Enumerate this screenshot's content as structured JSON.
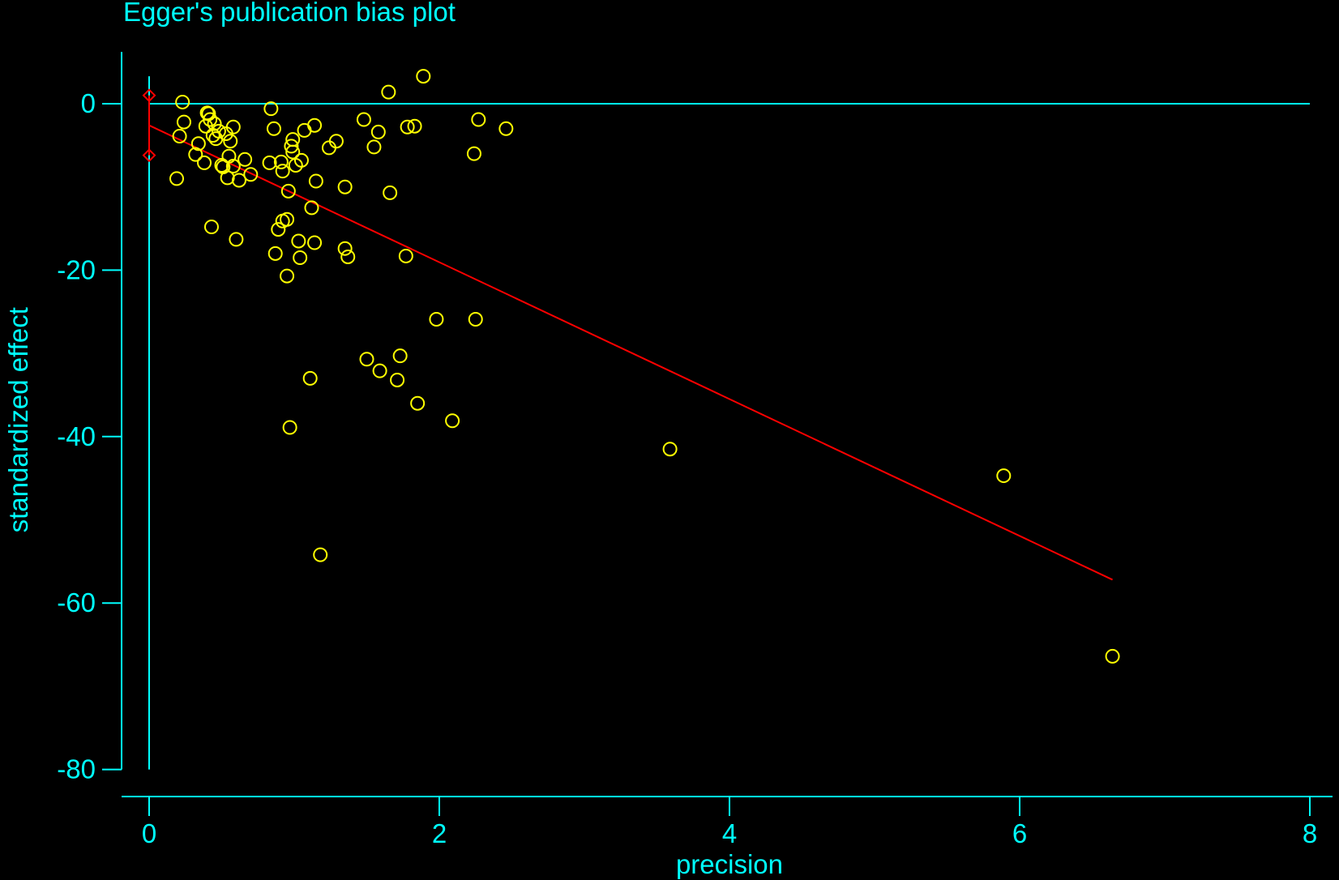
{
  "colors": {
    "background": "#000000",
    "axis": "#00FFFF",
    "points": "#FFFF00",
    "line": "#FF0000"
  },
  "chart_data": {
    "type": "scatter",
    "title": "Egger's publication bias plot",
    "xlabel": "precision",
    "ylabel": "standardized effect",
    "xlim": [
      0,
      8
    ],
    "ylim": [
      -80,
      0
    ],
    "xticks": [
      0,
      2,
      4,
      6,
      8
    ],
    "yticks": [
      0,
      -20,
      -40,
      -60,
      -80
    ],
    "grid": false,
    "points": [
      [
        0.19,
        -9.0
      ],
      [
        0.21,
        -3.9
      ],
      [
        0.23,
        0.2
      ],
      [
        0.24,
        -2.2
      ],
      [
        0.32,
        -6.1
      ],
      [
        0.34,
        -4.8
      ],
      [
        0.38,
        -7.1
      ],
      [
        0.39,
        -2.7
      ],
      [
        0.4,
        -1.1
      ],
      [
        0.41,
        -1.2
      ],
      [
        0.42,
        -1.9
      ],
      [
        0.43,
        -14.8
      ],
      [
        0.44,
        -3.8
      ],
      [
        0.45,
        -2.4
      ],
      [
        0.46,
        -4.2
      ],
      [
        0.48,
        -3.3
      ],
      [
        0.5,
        -7.4
      ],
      [
        0.51,
        -7.6
      ],
      [
        0.53,
        -3.6
      ],
      [
        0.54,
        -8.9
      ],
      [
        0.55,
        -6.3
      ],
      [
        0.56,
        -4.5
      ],
      [
        0.58,
        -7.5
      ],
      [
        0.58,
        -2.8
      ],
      [
        0.6,
        -16.3
      ],
      [
        0.62,
        -9.2
      ],
      [
        0.66,
        -6.7
      ],
      [
        0.7,
        -8.5
      ],
      [
        0.83,
        -7.1
      ],
      [
        0.84,
        -0.6
      ],
      [
        0.86,
        -3.0
      ],
      [
        0.87,
        -18.0
      ],
      [
        0.89,
        -15.1
      ],
      [
        0.91,
        -7.0
      ],
      [
        0.92,
        -14.1
      ],
      [
        0.92,
        -8.1
      ],
      [
        0.95,
        -20.7
      ],
      [
        0.95,
        -13.9
      ],
      [
        0.96,
        -10.5
      ],
      [
        0.97,
        -38.9
      ],
      [
        0.98,
        -5.1
      ],
      [
        0.99,
        -4.3
      ],
      [
        0.99,
        -5.8
      ],
      [
        1.01,
        -7.4
      ],
      [
        1.03,
        -16.5
      ],
      [
        1.04,
        -18.5
      ],
      [
        1.05,
        -6.8
      ],
      [
        1.07,
        -3.2
      ],
      [
        1.11,
        -33.0
      ],
      [
        1.12,
        -12.5
      ],
      [
        1.14,
        -16.7
      ],
      [
        1.14,
        -2.6
      ],
      [
        1.15,
        -9.3
      ],
      [
        1.18,
        -54.2
      ],
      [
        1.24,
        -5.3
      ],
      [
        1.29,
        -4.5
      ],
      [
        1.35,
        -10.0
      ],
      [
        1.35,
        -17.4
      ],
      [
        1.37,
        -18.4
      ],
      [
        1.48,
        -1.9
      ],
      [
        1.5,
        -30.7
      ],
      [
        1.55,
        -5.2
      ],
      [
        1.58,
        -3.4
      ],
      [
        1.59,
        -32.1
      ],
      [
        1.65,
        1.4
      ],
      [
        1.66,
        -10.7
      ],
      [
        1.71,
        -33.2
      ],
      [
        1.73,
        -30.3
      ],
      [
        1.77,
        -18.3
      ],
      [
        1.78,
        -2.8
      ],
      [
        1.83,
        -2.7
      ],
      [
        1.85,
        -36.0
      ],
      [
        1.89,
        3.3
      ],
      [
        1.98,
        -25.9
      ],
      [
        2.09,
        -38.1
      ],
      [
        2.24,
        -6.0
      ],
      [
        2.25,
        -25.9
      ],
      [
        2.27,
        -1.9
      ],
      [
        2.46,
        -3.0
      ],
      [
        3.59,
        -41.5
      ],
      [
        5.89,
        -44.7
      ],
      [
        6.64,
        -66.4
      ]
    ],
    "regression_line": {
      "x": [
        0,
        6.64
      ],
      "y": [
        -2.6,
        -57.2
      ]
    },
    "ci_markers": {
      "x": 0,
      "y": [
        1.0,
        -6.2
      ],
      "ci_line_extent": [
        3.3,
        -80
      ]
    },
    "reference_line": {
      "y": 0
    }
  }
}
